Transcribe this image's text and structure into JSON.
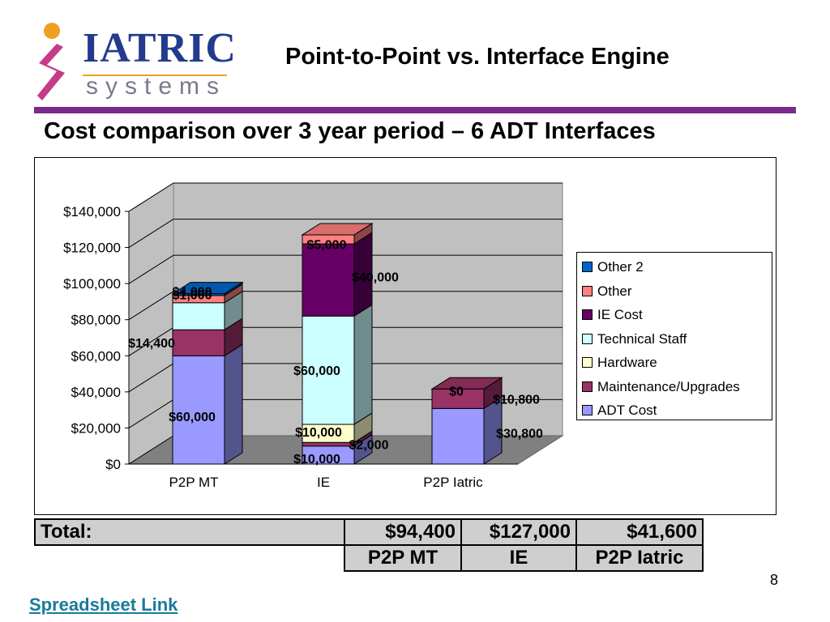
{
  "logo": {
    "word": "IATRIC",
    "sub": "systems"
  },
  "slide": {
    "title": "Point-to-Point vs. Interface Engine",
    "subtitle": "Cost comparison over 3 year period –  6 ADT Interfaces",
    "page_number": "8",
    "link_text": "Spreadsheet Link"
  },
  "colors": {
    "accent_rule": "#7a2a8a",
    "link": "#1a7a9a"
  },
  "chart_data": {
    "type": "bar",
    "stacked": true,
    "three_d": true,
    "categories": [
      "P2P MT",
      "IE",
      "P2P Iatric"
    ],
    "ylim": [
      0,
      140000
    ],
    "yticks": [
      0,
      20000,
      40000,
      60000,
      80000,
      100000,
      120000,
      140000
    ],
    "ytick_labels": [
      "$0",
      "$20,000",
      "$40,000",
      "$60,000",
      "$80,000",
      "$100,000",
      "$120,000",
      "$140,000"
    ],
    "grid": true,
    "legend_position": "right",
    "series": [
      {
        "name": "ADT Cost",
        "color": "#9999ff",
        "values": [
          60000,
          10000,
          30800
        ],
        "labels": [
          "$60,000",
          "$10,000",
          "$30,800"
        ]
      },
      {
        "name": "Maintenance/Upgrades",
        "color": "#993366",
        "values": [
          14400,
          2000,
          10800
        ],
        "labels": [
          "$14,400",
          "$2,000",
          "$10,800"
        ]
      },
      {
        "name": "Hardware",
        "color": "#ffffcc",
        "values": [
          0,
          10000,
          0
        ],
        "labels": [
          "",
          "$10,000",
          ""
        ]
      },
      {
        "name": "Technical Staff",
        "color": "#ccffff",
        "values": [
          15000,
          60000,
          0
        ],
        "labels": [
          "",
          "$60,000",
          ""
        ]
      },
      {
        "name": "IE Cost",
        "color": "#660066",
        "values": [
          0,
          40000,
          0
        ],
        "labels": [
          "",
          "$40,000",
          ""
        ]
      },
      {
        "name": "Other",
        "color": "#ff8080",
        "values": [
          4000,
          5000,
          0
        ],
        "labels": [
          "$4,000",
          "$5,000",
          ""
        ]
      },
      {
        "name": "Other 2",
        "color": "#0066cc",
        "values": [
          1000,
          0,
          0
        ],
        "labels": [
          "$1,000",
          "",
          "$0"
        ]
      }
    ]
  },
  "totals": {
    "label": "Total:",
    "values": [
      "$94,400",
      "$127,000",
      "$41,600"
    ],
    "headers": [
      "P2P MT",
      "IE",
      "P2P Iatric"
    ]
  }
}
